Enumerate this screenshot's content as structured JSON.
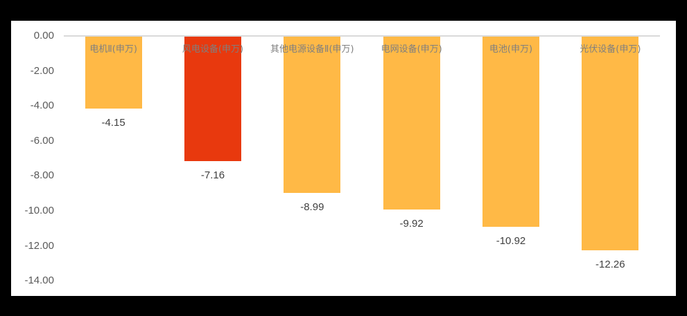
{
  "chart_data": {
    "type": "bar",
    "title": "",
    "xlabel": "",
    "ylabel": "",
    "categories": [
      "电机Ⅱ(申万)",
      "风电设备(申万)",
      "其他电源设备Ⅱ(申万)",
      "电网设备(申万)",
      "电池(申万)",
      "光伏设备(申万)"
    ],
    "values": [
      -4.15,
      -7.16,
      -8.99,
      -9.92,
      -10.92,
      -12.26
    ],
    "value_labels": [
      "-4.15",
      "-7.16",
      "-8.99",
      "-9.92",
      "-10.92",
      "-12.26"
    ],
    "bar_colors": [
      "#FFB946",
      "#E8390E",
      "#FFB946",
      "#FFB946",
      "#FFB946",
      "#FFB946"
    ],
    "ylim": [
      -14,
      0
    ],
    "yticks": [
      0,
      -2,
      -4,
      -6,
      -8,
      -10,
      -12,
      -14
    ],
    "ytick_labels": [
      "0.00",
      "-2.00",
      "-4.00",
      "-6.00",
      "-8.00",
      "-10.00",
      "-12.00",
      "-14.00"
    ],
    "grid": false,
    "legend": null,
    "category_labels_position": "inside-top-of-bar"
  }
}
